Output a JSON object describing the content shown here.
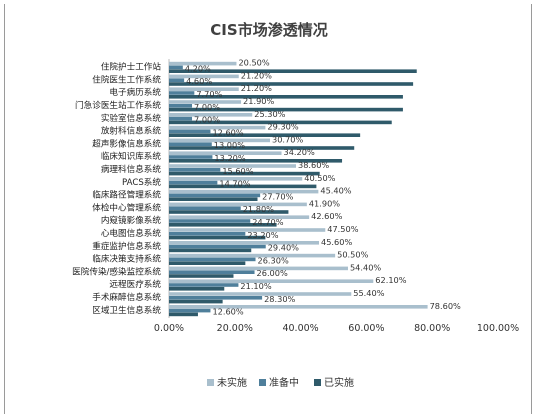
{
  "chart_data": {
    "type": "bar",
    "orientation": "horizontal",
    "title": "CIS市场渗透情况",
    "categories": [
      "住院护士工作站",
      "住院医生工作系统",
      "电子病历系统",
      "门急诊医生站工作系统",
      "实验室信息系统",
      "放射科信息系统",
      "超声影像信息系统",
      "临床知识库系统",
      "病理科信息系统",
      "PACS系统",
      "临床路径管理系统",
      "体检中心管理系统",
      "内窥镜影像系统",
      "心电图信息系统",
      "重症监护信息系统",
      "临床决策支持系统",
      "医院传染/感染监控系统",
      "远程医疗系统",
      "手术麻醉信息系统",
      "区域卫生信息系统"
    ],
    "series": [
      {
        "name": "未实施",
        "color": "#a9bfcd",
        "values": [
          20.5,
          21.2,
          21.2,
          21.9,
          25.3,
          29.3,
          30.7,
          34.2,
          38.6,
          40.5,
          45.4,
          41.9,
          42.6,
          47.5,
          45.6,
          50.5,
          54.4,
          62.1,
          55.4,
          78.6
        ],
        "labels": [
          "20.50%",
          "21.20%",
          "21.20%",
          "21.90%",
          "25.30%",
          "29.30%",
          "30.70%",
          "34.20%",
          "38.60%",
          "40.50%",
          "45.40%",
          "41.90%",
          "42.60%",
          "47.50%",
          "45.60%",
          "50.50%",
          "54.40%",
          "62.10%",
          "55.40%",
          "78.60%"
        ]
      },
      {
        "name": "准备中",
        "color": "#4f7f9b",
        "values": [
          4.2,
          4.6,
          7.7,
          7.0,
          7.0,
          12.6,
          13.0,
          13.2,
          15.6,
          14.7,
          27.7,
          21.8,
          24.7,
          23.2,
          29.4,
          26.3,
          26.0,
          21.1,
          28.3,
          12.6
        ],
        "labels": [
          "4.20%",
          "4.60%",
          "7.70%",
          "7.00%",
          "7.00%",
          "12.60%",
          "13.00%",
          "13.20%",
          "15.60%",
          "14.70%",
          "27.70%",
          "21.80%",
          "24.70%",
          "23.20%",
          "29.40%",
          "26.30%",
          "26.00%",
          "21.10%",
          "28.30%",
          "12.60%"
        ]
      },
      {
        "name": "已实施",
        "color": "#2f5a6a",
        "values": [
          75.3,
          74.2,
          71.1,
          71.1,
          67.7,
          58.1,
          56.3,
          52.6,
          45.8,
          44.8,
          26.9,
          36.3,
          32.7,
          29.3,
          25.0,
          23.2,
          19.6,
          16.8,
          16.3,
          8.8
        ],
        "labels": []
      }
    ],
    "xlim": [
      0,
      100
    ],
    "xticks": [
      "0.00%",
      "20.00%",
      "40.00%",
      "60.00%",
      "80.00%",
      "100.00%"
    ],
    "xtick_values": [
      0,
      20,
      40,
      60,
      80,
      100
    ],
    "grid": false,
    "legend_position": "bottom"
  }
}
